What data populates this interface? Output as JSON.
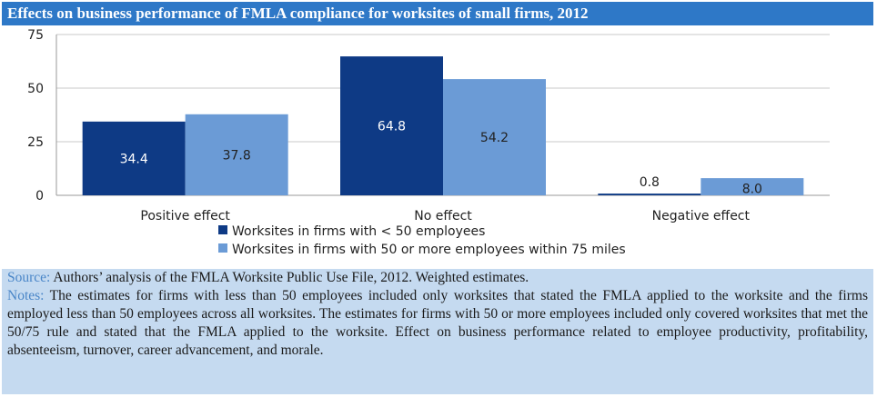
{
  "title": "Effects on business performance of FMLA compliance for worksites of small firms, 2012",
  "chart_data": {
    "type": "bar",
    "title": "Effects on business performance of FMLA compliance for worksites of small firms, 2012",
    "categories": [
      "Positive effect",
      "No effect",
      "Negative effect"
    ],
    "series": [
      {
        "name": "Worksites in firms with < 50 employees",
        "values": [
          34.4,
          64.8,
          0.8
        ],
        "labels": [
          "34.4",
          "64.8",
          "0.8"
        ],
        "color": "#0e3a85"
      },
      {
        "name": "Worksites in firms with 50 or more employees within 75 miles",
        "values": [
          37.8,
          54.2,
          8.0
        ],
        "labels": [
          "37.8",
          "54.2",
          "8.0"
        ],
        "color": "#6b9bd6"
      }
    ],
    "ylim": [
      0,
      75
    ],
    "yticks": [
      "0",
      "25",
      "50",
      "75"
    ],
    "ytick_values": [
      0,
      25,
      50,
      75
    ],
    "grid": true,
    "legend_position": "bottom",
    "xlabel": "",
    "ylabel": ""
  },
  "notes": {
    "source_label": "Source:",
    "source_text": " Authors’ analysis of the FMLA Worksite Public Use File, 2012. Weighted estimates.",
    "notes_label": "Notes:",
    "notes_text": " The estimates for firms with less than 50 employees included only worksites that stated the FMLA applied to the worksite and the firms employed less than 50 employees across all worksites. The estimates for firms with 50 or more employees included only covered worksites that met the 50/75 rule and stated that the FMLA applied to the worksite. Effect on business performance related to employee productivity, profitability, absenteeism, turnover, career advancement, and morale."
  }
}
